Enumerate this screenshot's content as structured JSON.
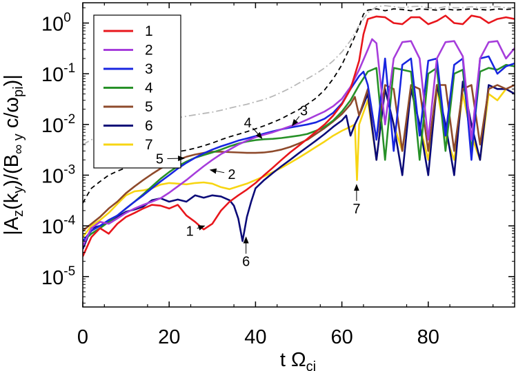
{
  "chart_data": {
    "type": "line",
    "xlabel": "t Ω",
    "xlabel_sub": "ci",
    "ylabel_parts": [
      "|A",
      "z",
      "(k",
      "y",
      ")/(B",
      "∞ y",
      " c/ω",
      "pi",
      ")|"
    ],
    "xlim": [
      0,
      100
    ],
    "ylim_log10": [
      -5.6,
      0.4
    ],
    "y_scale": "log",
    "x_ticks": [
      0,
      20,
      40,
      60,
      80
    ],
    "y_ticks": [
      {
        "base": "10",
        "exp": "0",
        "value": 1
      },
      {
        "base": "10",
        "exp": "-1",
        "value": 0.1
      },
      {
        "base": "10",
        "exp": "-2",
        "value": 0.01
      },
      {
        "base": "10",
        "exp": "-3",
        "value": 0.001
      },
      {
        "base": "10",
        "exp": "-4",
        "value": 0.0001
      },
      {
        "base": "10",
        "exp": "-5",
        "value": 1e-05
      }
    ],
    "legend_position": "top-left",
    "series": [
      {
        "name": "1",
        "color": "#e8161c",
        "x": [
          0,
          2,
          4,
          6,
          8,
          10,
          12,
          14,
          16,
          18,
          20,
          22,
          24,
          26,
          28,
          30,
          32,
          34,
          36,
          38,
          40,
          42,
          44,
          46,
          48,
          50,
          52,
          54,
          56,
          58,
          60,
          62,
          64,
          65,
          66,
          68,
          70,
          72,
          74,
          76,
          78,
          80,
          82,
          84,
          86,
          88,
          90,
          92,
          94,
          96,
          98,
          100
        ],
        "y": [
          2.5e-05,
          6e-05,
          9e-05,
          7e-05,
          0.00011,
          0.00015,
          0.00018,
          0.00022,
          0.00026,
          0.00025,
          0.00022,
          0.00026,
          0.00016,
          0.00012,
          8.5e-05,
          0.00011,
          0.0002,
          0.0003,
          0.0004,
          0.00052,
          0.0007,
          0.001,
          0.0014,
          0.002,
          0.0028,
          0.0038,
          0.0052,
          0.0072,
          0.01,
          0.015,
          0.025,
          0.05,
          0.18,
          0.6,
          1.2,
          1.35,
          1.3,
          1.0,
          0.95,
          1.3,
          1.3,
          0.95,
          1.1,
          1.4,
          1.0,
          0.95,
          1.4,
          1.3,
          1.0,
          1.2,
          1.3,
          1.2
        ]
      },
      {
        "name": "2",
        "color": "#a63ddb",
        "x": [
          0,
          2,
          4,
          6,
          8,
          10,
          12,
          14,
          16,
          18,
          20,
          22,
          24,
          26,
          28,
          30,
          32,
          34,
          36,
          38,
          40,
          42,
          44,
          46,
          48,
          50,
          52,
          54,
          56,
          58,
          60,
          62,
          64,
          66,
          67,
          68,
          70,
          72,
          74,
          76,
          78,
          80,
          82,
          84,
          86,
          88,
          90,
          92,
          94,
          96,
          98,
          100
        ],
        "y": [
          4e-05,
          9e-05,
          0.00012,
          0.00011,
          0.00014,
          0.00018,
          0.00022,
          0.00026,
          0.0003,
          0.00035,
          0.00045,
          0.0006,
          0.0008,
          0.0011,
          0.0015,
          0.002,
          0.0026,
          0.0032,
          0.004,
          0.0048,
          0.0056,
          0.0063,
          0.007,
          0.008,
          0.0092,
          0.0105,
          0.0125,
          0.015,
          0.018,
          0.023,
          0.032,
          0.055,
          0.12,
          0.3,
          0.48,
          0.4,
          0.01,
          0.2,
          0.42,
          0.44,
          0.2,
          0.005,
          0.2,
          0.42,
          0.44,
          0.22,
          0.005,
          0.2,
          0.42,
          0.44,
          0.2,
          0.32
        ]
      },
      {
        "name": "3",
        "color": "#1826e0",
        "x": [
          0,
          2,
          4,
          6,
          8,
          10,
          12,
          14,
          16,
          18,
          20,
          22,
          24,
          26,
          28,
          30,
          32,
          34,
          36,
          38,
          40,
          42,
          44,
          46,
          48,
          50,
          52,
          54,
          56,
          58,
          60,
          62,
          64,
          65,
          66,
          68,
          70,
          72,
          74,
          76,
          78,
          80,
          82,
          84,
          86,
          88,
          90,
          92,
          94,
          96,
          98,
          100
        ],
        "y": [
          5e-05,
          8e-05,
          0.0001,
          0.00013,
          0.00016,
          0.00022,
          0.0003,
          0.0004,
          0.00055,
          0.00075,
          0.001,
          0.00135,
          0.00175,
          0.0022,
          0.0027,
          0.0032,
          0.0037,
          0.0042,
          0.0048,
          0.0053,
          0.0059,
          0.0066,
          0.0073,
          0.008,
          0.0087,
          0.0093,
          0.01,
          0.011,
          0.013,
          0.017,
          0.026,
          0.05,
          0.09,
          0.11,
          0.06,
          0.005,
          0.2,
          0.003,
          0.15,
          0.2,
          0.006,
          0.18,
          0.2,
          0.006,
          0.15,
          0.2,
          0.002,
          0.2,
          0.22,
          0.1,
          0.14,
          0.16
        ]
      },
      {
        "name": "4",
        "color": "#279128",
        "x": [
          0,
          2,
          4,
          6,
          8,
          10,
          12,
          14,
          16,
          18,
          20,
          22,
          24,
          26,
          28,
          30,
          32,
          34,
          36,
          38,
          40,
          42,
          44,
          46,
          48,
          50,
          52,
          54,
          56,
          58,
          60,
          62,
          64,
          66,
          68,
          70,
          72,
          74,
          76,
          78,
          80,
          82,
          84,
          86,
          88,
          90,
          92,
          94,
          96,
          98,
          100
        ],
        "y": [
          5e-05,
          7e-05,
          9e-05,
          0.00012,
          0.00016,
          0.00022,
          0.0003,
          0.00042,
          0.0006,
          0.00085,
          0.00115,
          0.0015,
          0.00185,
          0.0022,
          0.0025,
          0.0028,
          0.0032,
          0.0037,
          0.0042,
          0.0046,
          0.0049,
          0.0051,
          0.0052,
          0.0054,
          0.0057,
          0.006,
          0.0065,
          0.0075,
          0.009,
          0.012,
          0.018,
          0.03,
          0.06,
          0.11,
          0.13,
          0.002,
          0.13,
          0.12,
          0.11,
          0.002,
          0.1,
          0.13,
          0.003,
          0.1,
          0.12,
          0.003,
          0.11,
          0.13,
          0.12,
          0.15,
          0.14
        ]
      },
      {
        "name": "5",
        "color": "#8e4a2b",
        "x": [
          0,
          2,
          4,
          6,
          8,
          10,
          12,
          14,
          16,
          18,
          20,
          22,
          24,
          26,
          28,
          30,
          32,
          34,
          36,
          38,
          40,
          42,
          44,
          46,
          48,
          50,
          52,
          54,
          56,
          58,
          60,
          62,
          63,
          64,
          66,
          68,
          70,
          72,
          74,
          76,
          78,
          80,
          82,
          84,
          86,
          88,
          90,
          92,
          94,
          96,
          98,
          100
        ],
        "y": [
          8e-05,
          0.00011,
          0.00015,
          0.00022,
          0.0003,
          0.00044,
          0.0006,
          0.0008,
          0.00105,
          0.00135,
          0.00165,
          0.002,
          0.0023,
          0.00255,
          0.00275,
          0.0029,
          0.0029,
          0.00285,
          0.0028,
          0.00275,
          0.00275,
          0.0028,
          0.00295,
          0.0032,
          0.0036,
          0.0042,
          0.005,
          0.0065,
          0.0085,
          0.0115,
          0.016,
          0.025,
          0.035,
          0.015,
          0.05,
          0.005,
          0.06,
          0.05,
          0.003,
          0.06,
          0.05,
          0.003,
          0.06,
          0.06,
          0.003,
          0.05,
          0.06,
          0.004,
          0.05,
          0.06,
          0.05,
          0.06
        ]
      },
      {
        "name": "6",
        "color": "#0b0b78",
        "x": [
          0,
          2,
          4,
          6,
          8,
          10,
          12,
          14,
          16,
          18,
          20,
          22,
          24,
          26,
          28,
          30,
          32,
          34,
          35,
          36,
          37,
          38,
          39,
          40,
          42,
          44,
          46,
          48,
          50,
          52,
          54,
          56,
          58,
          60,
          61,
          62,
          63,
          64,
          66,
          68,
          70,
          72,
          74,
          76,
          78,
          80,
          82,
          84,
          86,
          88,
          90,
          92,
          94,
          96,
          98,
          100
        ],
        "y": [
          3.5e-05,
          9e-05,
          0.0001,
          0.00012,
          0.00015,
          0.00019,
          0.00021,
          0.00024,
          0.00032,
          0.00035,
          0.0003,
          0.00033,
          0.0003,
          0.0004,
          0.00036,
          0.0004,
          0.00038,
          0.00032,
          0.00025,
          0.00014,
          5e-05,
          0.00015,
          0.0003,
          0.00055,
          0.0008,
          0.0011,
          0.0015,
          0.002,
          0.0027,
          0.0036,
          0.0048,
          0.0065,
          0.009,
          0.012,
          0.015,
          0.006,
          0.01,
          0.015,
          0.04,
          0.002,
          0.05,
          0.01,
          0.001,
          0.05,
          0.01,
          0.001,
          0.06,
          0.01,
          0.001,
          0.07,
          0.01,
          0.002,
          0.06,
          0.05,
          0.05,
          0.04
        ]
      },
      {
        "name": "7",
        "color": "#f7d512",
        "x": [
          0,
          2,
          4,
          6,
          8,
          10,
          12,
          14,
          16,
          18,
          20,
          22,
          24,
          26,
          28,
          30,
          32,
          34,
          36,
          38,
          40,
          42,
          44,
          46,
          48,
          50,
          52,
          54,
          56,
          58,
          60,
          62,
          63,
          63.5,
          64,
          66,
          68,
          70,
          72,
          74,
          76,
          78,
          80,
          82,
          84,
          86,
          88,
          90,
          92,
          94,
          96,
          98,
          100
        ],
        "y": [
          6e-05,
          0.0001,
          0.00013,
          0.00018,
          0.00027,
          0.0004,
          0.00048,
          0.0005,
          0.00055,
          0.00065,
          0.0007,
          0.00068,
          0.00066,
          0.0007,
          0.00072,
          0.00068,
          0.00058,
          0.00053,
          0.0006,
          0.00068,
          0.0008,
          0.00095,
          0.00115,
          0.0014,
          0.00175,
          0.0022,
          0.0028,
          0.0036,
          0.0046,
          0.006,
          0.0075,
          0.009,
          0.01,
          0.0008,
          0.01,
          0.03,
          0.002,
          0.05,
          0.01,
          0.003,
          0.05,
          0.01,
          0.002,
          0.05,
          0.006,
          0.002,
          0.04,
          0.006,
          0.002,
          0.04,
          0.03,
          0.05,
          0.04
        ]
      },
      {
        "name": "",
        "color": "#000000",
        "dash": "7,5",
        "x": [
          0,
          1,
          2,
          4,
          6,
          8,
          10,
          12,
          14,
          16,
          18,
          20,
          22,
          24,
          26,
          28,
          30,
          32,
          34,
          36,
          38,
          40,
          42,
          44,
          46,
          48,
          50,
          52,
          54,
          56,
          58,
          60,
          62,
          64,
          65,
          66,
          68,
          70,
          72,
          74,
          76,
          78,
          80,
          82,
          84,
          86,
          88,
          90,
          92,
          94,
          96,
          98,
          100
        ],
        "y": [
          0.00028,
          0.0004,
          0.00055,
          0.00075,
          0.001,
          0.0012,
          0.0014,
          0.0017,
          0.002,
          0.0023,
          0.0025,
          0.0027,
          0.0029,
          0.0031,
          0.0034,
          0.0038,
          0.0043,
          0.005,
          0.0057,
          0.0064,
          0.0072,
          0.0082,
          0.0094,
          0.011,
          0.013,
          0.016,
          0.0195,
          0.025,
          0.033,
          0.048,
          0.08,
          0.15,
          0.35,
          0.85,
          1.5,
          1.8,
          1.9,
          1.75,
          1.9,
          1.85,
          1.75,
          1.9,
          1.85,
          1.8,
          1.9,
          1.8,
          1.85,
          1.9,
          1.85,
          1.8,
          1.9,
          1.85,
          1.9
        ]
      },
      {
        "name": "",
        "color": "#b8b8b8",
        "dash": "10,4,2,4",
        "x": [
          0,
          2,
          4,
          6,
          8,
          10,
          12,
          14,
          16,
          18,
          20,
          22,
          24,
          26,
          28,
          30,
          32,
          34,
          36,
          38,
          40,
          42,
          44,
          46,
          48,
          50,
          52,
          54,
          56,
          58,
          60,
          62,
          64,
          66,
          68,
          70,
          72,
          74,
          76,
          78,
          80,
          82,
          84,
          86,
          88,
          90,
          92,
          94,
          96,
          98,
          100
        ],
        "y": [
          0.004,
          0.005,
          0.0056,
          0.0062,
          0.0068,
          0.0076,
          0.0085,
          0.0095,
          0.0105,
          0.0115,
          0.0125,
          0.0135,
          0.0145,
          0.0155,
          0.0165,
          0.0175,
          0.019,
          0.021,
          0.023,
          0.025,
          0.028,
          0.031,
          0.036,
          0.043,
          0.052,
          0.065,
          0.08,
          0.1,
          0.13,
          0.18,
          0.27,
          0.45,
          0.9,
          1.6,
          2.1,
          2.2,
          2.1,
          2.0,
          2.1,
          2.15,
          2.0,
          1.95,
          2.1,
          2.0,
          2.0,
          2.1,
          2.0,
          2.05,
          2.1,
          2.0,
          2.0
        ]
      }
    ],
    "annotations": [
      {
        "text": "1",
        "label_at": [
          24.8,
          8e-05
        ],
        "arrow_to": [
          28.2,
          0.0001
        ]
      },
      {
        "text": "2",
        "label_at": [
          34.5,
          0.00105
        ],
        "arrow_to": [
          29.5,
          0.00127
        ]
      },
      {
        "text": "3",
        "label_at": [
          51.2,
          0.019
        ],
        "arrow_to": [
          48.5,
          0.0095
        ]
      },
      {
        "text": "4",
        "label_at": [
          38.2,
          0.011
        ],
        "arrow_to": [
          41.5,
          0.0053
        ]
      },
      {
        "text": "5",
        "label_at": [
          17.8,
          0.0021
        ],
        "arrow_to": [
          23.5,
          0.00215
        ]
      },
      {
        "text": "6",
        "label_at": [
          37.8,
          2e-05
        ],
        "arrow_to": [
          37.8,
          6e-05
        ]
      },
      {
        "text": "7",
        "label_at": [
          63.4,
          0.00022
        ],
        "arrow_to": [
          63.4,
          0.00065
        ]
      }
    ]
  }
}
